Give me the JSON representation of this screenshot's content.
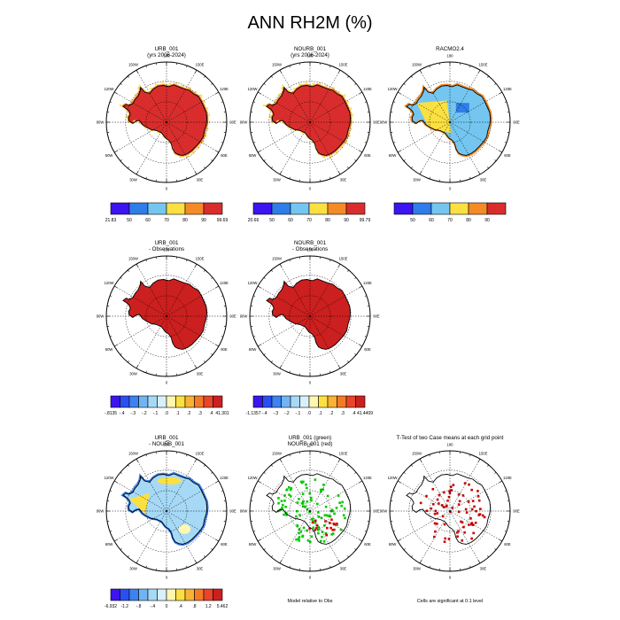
{
  "title": "ANN RH2M (%)",
  "colors": {
    "ocean": "#ffffff",
    "coast": "#000000",
    "grid": "#000000",
    "diff_green": "#00cc00",
    "diff_red": "#dd0000",
    "ttest_red": "#cc0000"
  },
  "common": {
    "meridian_labels": [
      "0",
      "30E",
      "60E",
      "90E",
      "120E",
      "150E",
      "180",
      "150W",
      "120W",
      "90W",
      "60W",
      "30W"
    ]
  },
  "panels": [
    {
      "id": "urb",
      "title1": "URB_001",
      "title2": "(yrs 2006-2024)",
      "fill_kind": "model",
      "colorbar": {
        "colors": [
          "#3b14f0",
          "#2e7de8",
          "#74c6f0",
          "#fbe041",
          "#f58b26",
          "#d92d2d"
        ],
        "labels": [
          "21.83",
          "50",
          "60",
          "70",
          "80",
          "90",
          "99.69"
        ]
      }
    },
    {
      "id": "nourb",
      "title1": "NOURB_001",
      "title2": "(yrs 2006-2024)",
      "fill_kind": "model",
      "colorbar": {
        "colors": [
          "#3b14f0",
          "#2e7de8",
          "#74c6f0",
          "#fbe041",
          "#f58b26",
          "#d92d2d"
        ],
        "labels": [
          "20.66",
          "50",
          "60",
          "70",
          "80",
          "90",
          "99.79"
        ]
      }
    },
    {
      "id": "racmo",
      "title1": "RACMO2.4",
      "title2": "",
      "fill_kind": "obs",
      "colorbar": {
        "colors": [
          "#3b14f0",
          "#2e7de8",
          "#74c6f0",
          "#fbe041",
          "#f58b26",
          "#d92d2d"
        ],
        "labels": [
          "",
          "50",
          "60",
          "70",
          "80",
          "90",
          ""
        ]
      }
    },
    {
      "id": "urb_obs",
      "title1": "URB_001",
      "title2": "- Observations",
      "fill_kind": "solid_red",
      "colorbar": {
        "colors": [
          "#3b14f0",
          "#2a4ff0",
          "#3c82f0",
          "#72b4f2",
          "#a6d9f6",
          "#d8f0f9",
          "#fff6b0",
          "#fbe041",
          "#f9b233",
          "#f57a26",
          "#e8452a",
          "#cc1f1f"
        ],
        "labels": [
          "-.8135",
          "-.4",
          "-.3",
          "-.2",
          "-.1",
          ".0",
          ".1",
          ".2",
          ".3",
          ".4",
          "41.301"
        ]
      }
    },
    {
      "id": "nourb_obs",
      "title1": "NOURB_001",
      "title2": "- Observations",
      "fill_kind": "solid_red",
      "colorbar": {
        "colors": [
          "#3b14f0",
          "#2a4ff0",
          "#3c82f0",
          "#72b4f2",
          "#a6d9f6",
          "#d8f0f9",
          "#fff6b0",
          "#fbe041",
          "#f9b233",
          "#f57a26",
          "#e8452a",
          "#cc1f1f"
        ],
        "labels": [
          "-1.1357",
          "-.4",
          "-.3",
          "-.2",
          "-.1",
          ".0",
          ".1",
          ".2",
          ".3",
          ".4",
          "41.4409"
        ]
      }
    },
    {
      "id": "urb_minus_nourb",
      "title1": "URB_001",
      "title2": "- NOURB_001",
      "fill_kind": "diff",
      "colorbar": {
        "colors": [
          "#3b14f0",
          "#2a4ff0",
          "#3c82f0",
          "#72b4f2",
          "#a6d9f6",
          "#d8f0f9",
          "#fff6b0",
          "#fbe041",
          "#f9b233",
          "#f57a26",
          "#e8452a",
          "#cc1f1f"
        ],
        "labels": [
          "-6.932",
          "-1.2",
          "-.8",
          "-.4",
          "0",
          ".4",
          ".8",
          "1.2",
          "5.462"
        ]
      }
    },
    {
      "id": "model_rel_obs",
      "title1": "URB_001 (green)",
      "title2": "NOURB_001 (red)",
      "fill_kind": "dots_green",
      "footer": "Model relative to Obs"
    },
    {
      "id": "ttest",
      "title1": "T-Test of two Case means at each grid point",
      "title2": "",
      "fill_kind": "dots_red",
      "footer": "Cells are significant at 0.1 level"
    }
  ],
  "chart_data": {
    "type": "heatmap",
    "title": "ANN RH2M (%)",
    "projection": "south polar stereographic",
    "maps": [
      {
        "name": "URB_001 (yrs 2006-2024)",
        "min": 21.83,
        "max": 99.69,
        "levels": [
          50,
          60,
          70,
          80,
          90
        ]
      },
      {
        "name": "NOURB_001 (yrs 2006-2024)",
        "min": 20.66,
        "max": 99.79,
        "levels": [
          50,
          60,
          70,
          80,
          90
        ]
      },
      {
        "name": "RACMO2.4",
        "levels": [
          50,
          60,
          70,
          80,
          90
        ]
      },
      {
        "name": "URB_001 - Observations",
        "min": -0.8135,
        "max": 41.301,
        "levels": [
          -0.4,
          -0.3,
          -0.2,
          -0.1,
          0.0,
          0.1,
          0.2,
          0.3,
          0.4
        ]
      },
      {
        "name": "NOURB_001 - Observations",
        "min": -1.1357,
        "max": 41.4409,
        "levels": [
          -0.4,
          -0.3,
          -0.2,
          -0.1,
          0.0,
          0.1,
          0.2,
          0.3,
          0.4
        ]
      },
      {
        "name": "URB_001 - NOURB_001",
        "min": -6.932,
        "max": 5.462,
        "levels": [
          -1.2,
          -0.8,
          -0.4,
          0,
          0.4,
          0.8,
          1.2
        ]
      }
    ]
  }
}
